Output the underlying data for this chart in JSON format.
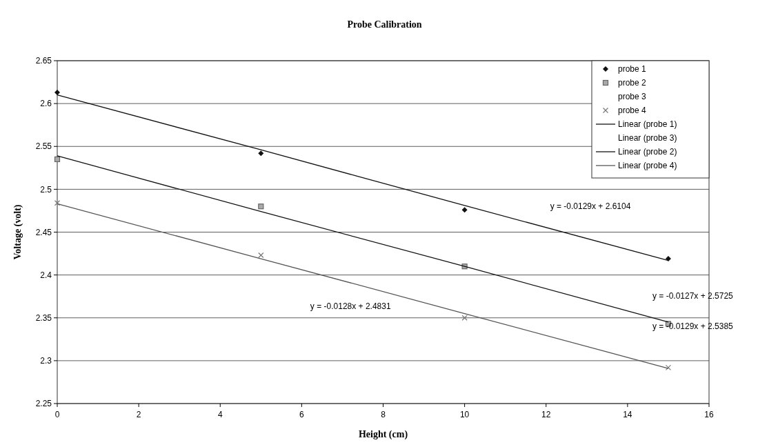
{
  "chart_data": {
    "type": "scatter",
    "title": "Probe Calibration",
    "xlabel": "Height (cm)",
    "ylabel": "Voltage (volt)",
    "x": [
      0,
      5,
      10,
      15
    ],
    "xlim": [
      0,
      16
    ],
    "xticks": [
      0,
      2,
      4,
      6,
      8,
      10,
      12,
      14,
      16
    ],
    "ylim": [
      2.25,
      2.65
    ],
    "yticks": [
      2.25,
      2.3,
      2.35,
      2.4,
      2.45,
      2.5,
      2.55,
      2.6,
      2.65
    ],
    "grid": "y",
    "legend": "top right",
    "series": [
      {
        "name": "probe 1",
        "color": "#111111",
        "marker": "diamond",
        "values": [
          2.613,
          2.542,
          2.476,
          2.419
        ]
      },
      {
        "name": "probe 2",
        "color": "#666666",
        "marker": "square",
        "values": [
          2.535,
          2.48,
          2.41,
          2.343
        ]
      },
      {
        "name": "probe 3",
        "values": [
          null,
          null,
          null,
          null
        ]
      },
      {
        "name": "probe 4",
        "color": "#777777",
        "marker": "cross",
        "values": [
          2.484,
          2.423,
          2.35,
          2.292
        ]
      },
      {
        "name": "Linear (probe 1)",
        "type": "line",
        "color": "#111111",
        "values": [
          2.61,
          2.546,
          2.481,
          2.417
        ]
      },
      {
        "name": "Linear (probe 3)",
        "type": "line",
        "values": [
          null,
          null,
          null,
          null
        ]
      },
      {
        "name": "Linear (probe 2)",
        "type": "line",
        "color": "#111111",
        "values": [
          2.539,
          2.474,
          2.41,
          2.345
        ]
      },
      {
        "name": "Linear (probe 4)",
        "type": "line",
        "color": "#555555",
        "values": [
          2.483,
          2.419,
          2.355,
          2.291
        ]
      }
    ],
    "annotations": [
      "y = -0.0129x + 2.6104",
      "y = -0.0127x + 2.5725",
      "y = -0.0129x + 2.5385",
      "y = -0.0128x + 2.4831"
    ]
  }
}
